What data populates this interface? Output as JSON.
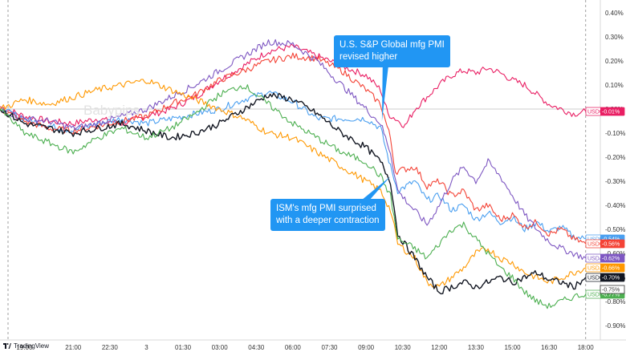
{
  "watermark": "Babypips",
  "brand": {
    "name": "TradingView",
    "logo_icon": "tradingview-logo-icon"
  },
  "annotations": [
    {
      "lines": [
        "U.S. S&P Global mfg PMI",
        "revised higher"
      ]
    },
    {
      "lines": [
        "ISM's mfg PMI surprised",
        "with a deeper contraction"
      ]
    }
  ],
  "chart_data": {
    "type": "line",
    "title": "",
    "xlabel": "",
    "ylabel": "",
    "ylim": [
      -0.92,
      0.44
    ],
    "y_unit": "%",
    "y_ticks": [
      "0.40%",
      "0.30%",
      "0.20%",
      "0.10%",
      "0.00%",
      "-0.10%",
      "-0.20%",
      "-0.30%",
      "-0.40%",
      "-0.50%",
      "-0.60%",
      "-0.70%",
      "-0.80%",
      "-0.90%"
    ],
    "x_ticks": [
      "19:00",
      "21:00",
      "22:30",
      "3",
      "01:30",
      "03:00",
      "04:30",
      "06:00",
      "07:30",
      "09:00",
      "10:30",
      "12:00",
      "13:30",
      "15:00",
      "16:30",
      "18:00"
    ],
    "x_tick_hours": [
      19,
      21,
      22.5,
      24,
      25.5,
      27,
      28.5,
      30,
      31.5,
      33,
      34.5,
      36,
      37.5,
      39,
      40.5,
      42
    ],
    "xlim_hours": [
      18.0,
      42.6
    ],
    "session_start_hour": 18.0,
    "session_end_hour": 42.0,
    "events": [
      {
        "label": "U.S. S&P Global mfg PMI revised higher",
        "hour": 33.75
      },
      {
        "label": "ISM's mfg PMI surprised with a deeper contraction",
        "hour": 34.0
      }
    ],
    "grid": false,
    "zero_line": true,
    "series": [
      {
        "name": "USDCAD",
        "label": "-0.01%",
        "color": "#e91e63",
        "points": [
          [
            18,
            0.01
          ],
          [
            19,
            -0.03
          ],
          [
            20,
            -0.05
          ],
          [
            21,
            -0.06
          ],
          [
            22,
            -0.04
          ],
          [
            23,
            -0.06
          ],
          [
            24,
            -0.03
          ],
          [
            25,
            0.0
          ],
          [
            26,
            0.05
          ],
          [
            27,
            0.12
          ],
          [
            28,
            0.18
          ],
          [
            29,
            0.24
          ],
          [
            30,
            0.26
          ],
          [
            31,
            0.22
          ],
          [
            32,
            0.18
          ],
          [
            33,
            0.14
          ],
          [
            33.6,
            0.08
          ],
          [
            33.9,
            -0.02
          ],
          [
            34.2,
            -0.04
          ],
          [
            34.6,
            -0.07
          ],
          [
            35,
            0.0
          ],
          [
            35.5,
            0.05
          ],
          [
            36,
            0.1
          ],
          [
            36.5,
            0.14
          ],
          [
            37,
            0.16
          ],
          [
            37.5,
            0.15
          ],
          [
            38,
            0.17
          ],
          [
            38.5,
            0.15
          ],
          [
            39,
            0.12
          ],
          [
            39.5,
            0.1
          ],
          [
            40,
            0.06
          ],
          [
            40.5,
            0.02
          ],
          [
            41,
            0.0
          ],
          [
            41.5,
            -0.02
          ],
          [
            42,
            -0.01
          ]
        ]
      },
      {
        "name": "USDEUR",
        "label": "-0.54%",
        "color": "#4a9ff0",
        "points": [
          [
            18,
            0.0
          ],
          [
            19,
            -0.04
          ],
          [
            20,
            -0.07
          ],
          [
            21,
            -0.09
          ],
          [
            22,
            -0.06
          ],
          [
            23,
            -0.04
          ],
          [
            24,
            -0.06
          ],
          [
            25,
            -0.04
          ],
          [
            26,
            -0.02
          ],
          [
            27,
            0.0
          ],
          [
            28,
            0.04
          ],
          [
            29,
            0.07
          ],
          [
            30,
            0.03
          ],
          [
            31,
            -0.04
          ],
          [
            32,
            -0.04
          ],
          [
            33,
            -0.04
          ],
          [
            33.6,
            -0.08
          ],
          [
            34,
            -0.24
          ],
          [
            34.3,
            -0.34
          ],
          [
            35,
            -0.3
          ],
          [
            35.5,
            -0.38
          ],
          [
            36,
            -0.36
          ],
          [
            36.5,
            -0.42
          ],
          [
            37,
            -0.4
          ],
          [
            37.5,
            -0.46
          ],
          [
            38,
            -0.43
          ],
          [
            38.5,
            -0.47
          ],
          [
            39,
            -0.45
          ],
          [
            39.5,
            -0.5
          ],
          [
            40,
            -0.47
          ],
          [
            40.5,
            -0.51
          ],
          [
            41,
            -0.49
          ],
          [
            41.5,
            -0.53
          ],
          [
            42,
            -0.54
          ]
        ]
      },
      {
        "name": "USDGBP",
        "label": "-0.56%",
        "color": "#f44336",
        "points": [
          [
            18,
            0.0
          ],
          [
            19,
            -0.05
          ],
          [
            20,
            -0.08
          ],
          [
            21,
            -0.09
          ],
          [
            22,
            -0.07
          ],
          [
            23,
            -0.05
          ],
          [
            24,
            -0.03
          ],
          [
            25,
            0.02
          ],
          [
            26,
            0.06
          ],
          [
            27,
            0.12
          ],
          [
            28,
            0.16
          ],
          [
            29,
            0.2
          ],
          [
            30,
            0.22
          ],
          [
            31,
            0.21
          ],
          [
            32,
            0.16
          ],
          [
            33,
            0.08
          ],
          [
            33.6,
            0.02
          ],
          [
            34,
            -0.12
          ],
          [
            34.2,
            -0.26
          ],
          [
            35,
            -0.24
          ],
          [
            35.5,
            -0.32
          ],
          [
            36,
            -0.3
          ],
          [
            36.5,
            -0.36
          ],
          [
            37,
            -0.34
          ],
          [
            37.5,
            -0.42
          ],
          [
            38,
            -0.4
          ],
          [
            38.5,
            -0.46
          ],
          [
            39,
            -0.44
          ],
          [
            39.5,
            -0.49
          ],
          [
            40,
            -0.47
          ],
          [
            40.5,
            -0.52
          ],
          [
            41,
            -0.5
          ],
          [
            41.5,
            -0.54
          ],
          [
            42,
            -0.56
          ]
        ]
      },
      {
        "name": "USDAUD",
        "label": "-0.62%",
        "color": "#7e57c2",
        "points": [
          [
            18,
            0.0
          ],
          [
            19,
            -0.04
          ],
          [
            20,
            -0.05
          ],
          [
            21,
            -0.08
          ],
          [
            22,
            -0.06
          ],
          [
            23,
            -0.03
          ],
          [
            24,
            0.0
          ],
          [
            25,
            0.05
          ],
          [
            26,
            0.1
          ],
          [
            27,
            0.16
          ],
          [
            28,
            0.22
          ],
          [
            29,
            0.28
          ],
          [
            30,
            0.27
          ],
          [
            31,
            0.2
          ],
          [
            32,
            0.1
          ],
          [
            33,
            0.0
          ],
          [
            33.6,
            -0.06
          ],
          [
            34,
            -0.18
          ],
          [
            34.3,
            -0.34
          ],
          [
            34.8,
            -0.4
          ],
          [
            35.5,
            -0.48
          ],
          [
            36,
            -0.4
          ],
          [
            36.5,
            -0.3
          ],
          [
            37,
            -0.24
          ],
          [
            37.5,
            -0.3
          ],
          [
            38,
            -0.22
          ],
          [
            38.5,
            -0.28
          ],
          [
            39,
            -0.36
          ],
          [
            39.5,
            -0.44
          ],
          [
            40,
            -0.5
          ],
          [
            40.5,
            -0.55
          ],
          [
            41,
            -0.58
          ],
          [
            41.5,
            -0.6
          ],
          [
            42,
            -0.62
          ]
        ]
      },
      {
        "name": "USDJPY",
        "label": "-0.66%",
        "color": "#ff9800",
        "points": [
          [
            18,
            0.0
          ],
          [
            19,
            0.04
          ],
          [
            20,
            0.02
          ],
          [
            21,
            0.05
          ],
          [
            22,
            0.08
          ],
          [
            23,
            0.1
          ],
          [
            24,
            0.12
          ],
          [
            25,
            0.08
          ],
          [
            26,
            0.04
          ],
          [
            27,
            0.0
          ],
          [
            28,
            -0.04
          ],
          [
            29,
            -0.1
          ],
          [
            30,
            -0.12
          ],
          [
            31,
            -0.18
          ],
          [
            32,
            -0.24
          ],
          [
            33,
            -0.3
          ],
          [
            33.6,
            -0.34
          ],
          [
            34,
            -0.42
          ],
          [
            34.3,
            -0.56
          ],
          [
            35,
            -0.62
          ],
          [
            35.5,
            -0.72
          ],
          [
            36,
            -0.74
          ],
          [
            36.5,
            -0.7
          ],
          [
            37,
            -0.66
          ],
          [
            37.5,
            -0.6
          ],
          [
            38,
            -0.58
          ],
          [
            38.5,
            -0.62
          ],
          [
            39,
            -0.64
          ],
          [
            39.5,
            -0.68
          ],
          [
            40,
            -0.7
          ],
          [
            40.5,
            -0.72
          ],
          [
            41,
            -0.7
          ],
          [
            41.5,
            -0.68
          ],
          [
            42,
            -0.66
          ]
        ]
      },
      {
        "name": "USDCHF",
        "label": "-0.70%",
        "color": "#131722",
        "points": [
          [
            18,
            0.0
          ],
          [
            19,
            -0.06
          ],
          [
            20,
            -0.08
          ],
          [
            21,
            -0.1
          ],
          [
            22,
            -0.08
          ],
          [
            23,
            -0.06
          ],
          [
            24,
            -0.09
          ],
          [
            25,
            -0.12
          ],
          [
            26,
            -0.1
          ],
          [
            27,
            -0.06
          ],
          [
            28,
            0.0
          ],
          [
            29,
            0.06
          ],
          [
            30,
            0.04
          ],
          [
            31,
            -0.02
          ],
          [
            32,
            -0.1
          ],
          [
            33,
            -0.16
          ],
          [
            33.6,
            -0.22
          ],
          [
            34,
            -0.3
          ],
          [
            34.3,
            -0.52
          ],
          [
            35,
            -0.62
          ],
          [
            35.5,
            -0.7
          ],
          [
            36,
            -0.76
          ],
          [
            36.5,
            -0.74
          ],
          [
            37,
            -0.72
          ],
          [
            37.5,
            -0.74
          ],
          [
            38,
            -0.72
          ],
          [
            38.5,
            -0.7
          ],
          [
            39,
            -0.72
          ],
          [
            39.5,
            -0.7
          ],
          [
            40,
            -0.68
          ],
          [
            40.5,
            -0.71
          ],
          [
            41,
            -0.72
          ],
          [
            41.5,
            -0.74
          ],
          [
            42,
            -0.7
          ]
        ]
      },
      {
        "name": "USDNZD",
        "label": "-0.77%",
        "color": "#4caf50",
        "points": [
          [
            18,
            0.0
          ],
          [
            19,
            -0.1
          ],
          [
            20,
            -0.14
          ],
          [
            21,
            -0.18
          ],
          [
            22,
            -0.12
          ],
          [
            23,
            -0.08
          ],
          [
            24,
            -0.12
          ],
          [
            25,
            -0.08
          ],
          [
            26,
            -0.02
          ],
          [
            27,
            0.06
          ],
          [
            28,
            0.1
          ],
          [
            29,
            0.02
          ],
          [
            30,
            -0.06
          ],
          [
            31,
            -0.12
          ],
          [
            32,
            -0.18
          ],
          [
            33,
            -0.22
          ],
          [
            33.6,
            -0.28
          ],
          [
            34,
            -0.36
          ],
          [
            34.3,
            -0.54
          ],
          [
            35,
            -0.58
          ],
          [
            35.5,
            -0.62
          ],
          [
            36,
            -0.56
          ],
          [
            36.5,
            -0.5
          ],
          [
            37,
            -0.48
          ],
          [
            37.5,
            -0.54
          ],
          [
            38,
            -0.6
          ],
          [
            38.5,
            -0.66
          ],
          [
            39,
            -0.7
          ],
          [
            39.5,
            -0.76
          ],
          [
            40,
            -0.8
          ],
          [
            40.5,
            -0.82
          ],
          [
            41,
            -0.8
          ],
          [
            41.5,
            -0.78
          ],
          [
            42,
            -0.77
          ]
        ]
      }
    ],
    "badge_note": "Extra right-axis price tags shown",
    "extra_tags": [
      {
        "label": "-0.75%",
        "color": "#ffffff",
        "border": "#333333"
      }
    ]
  }
}
